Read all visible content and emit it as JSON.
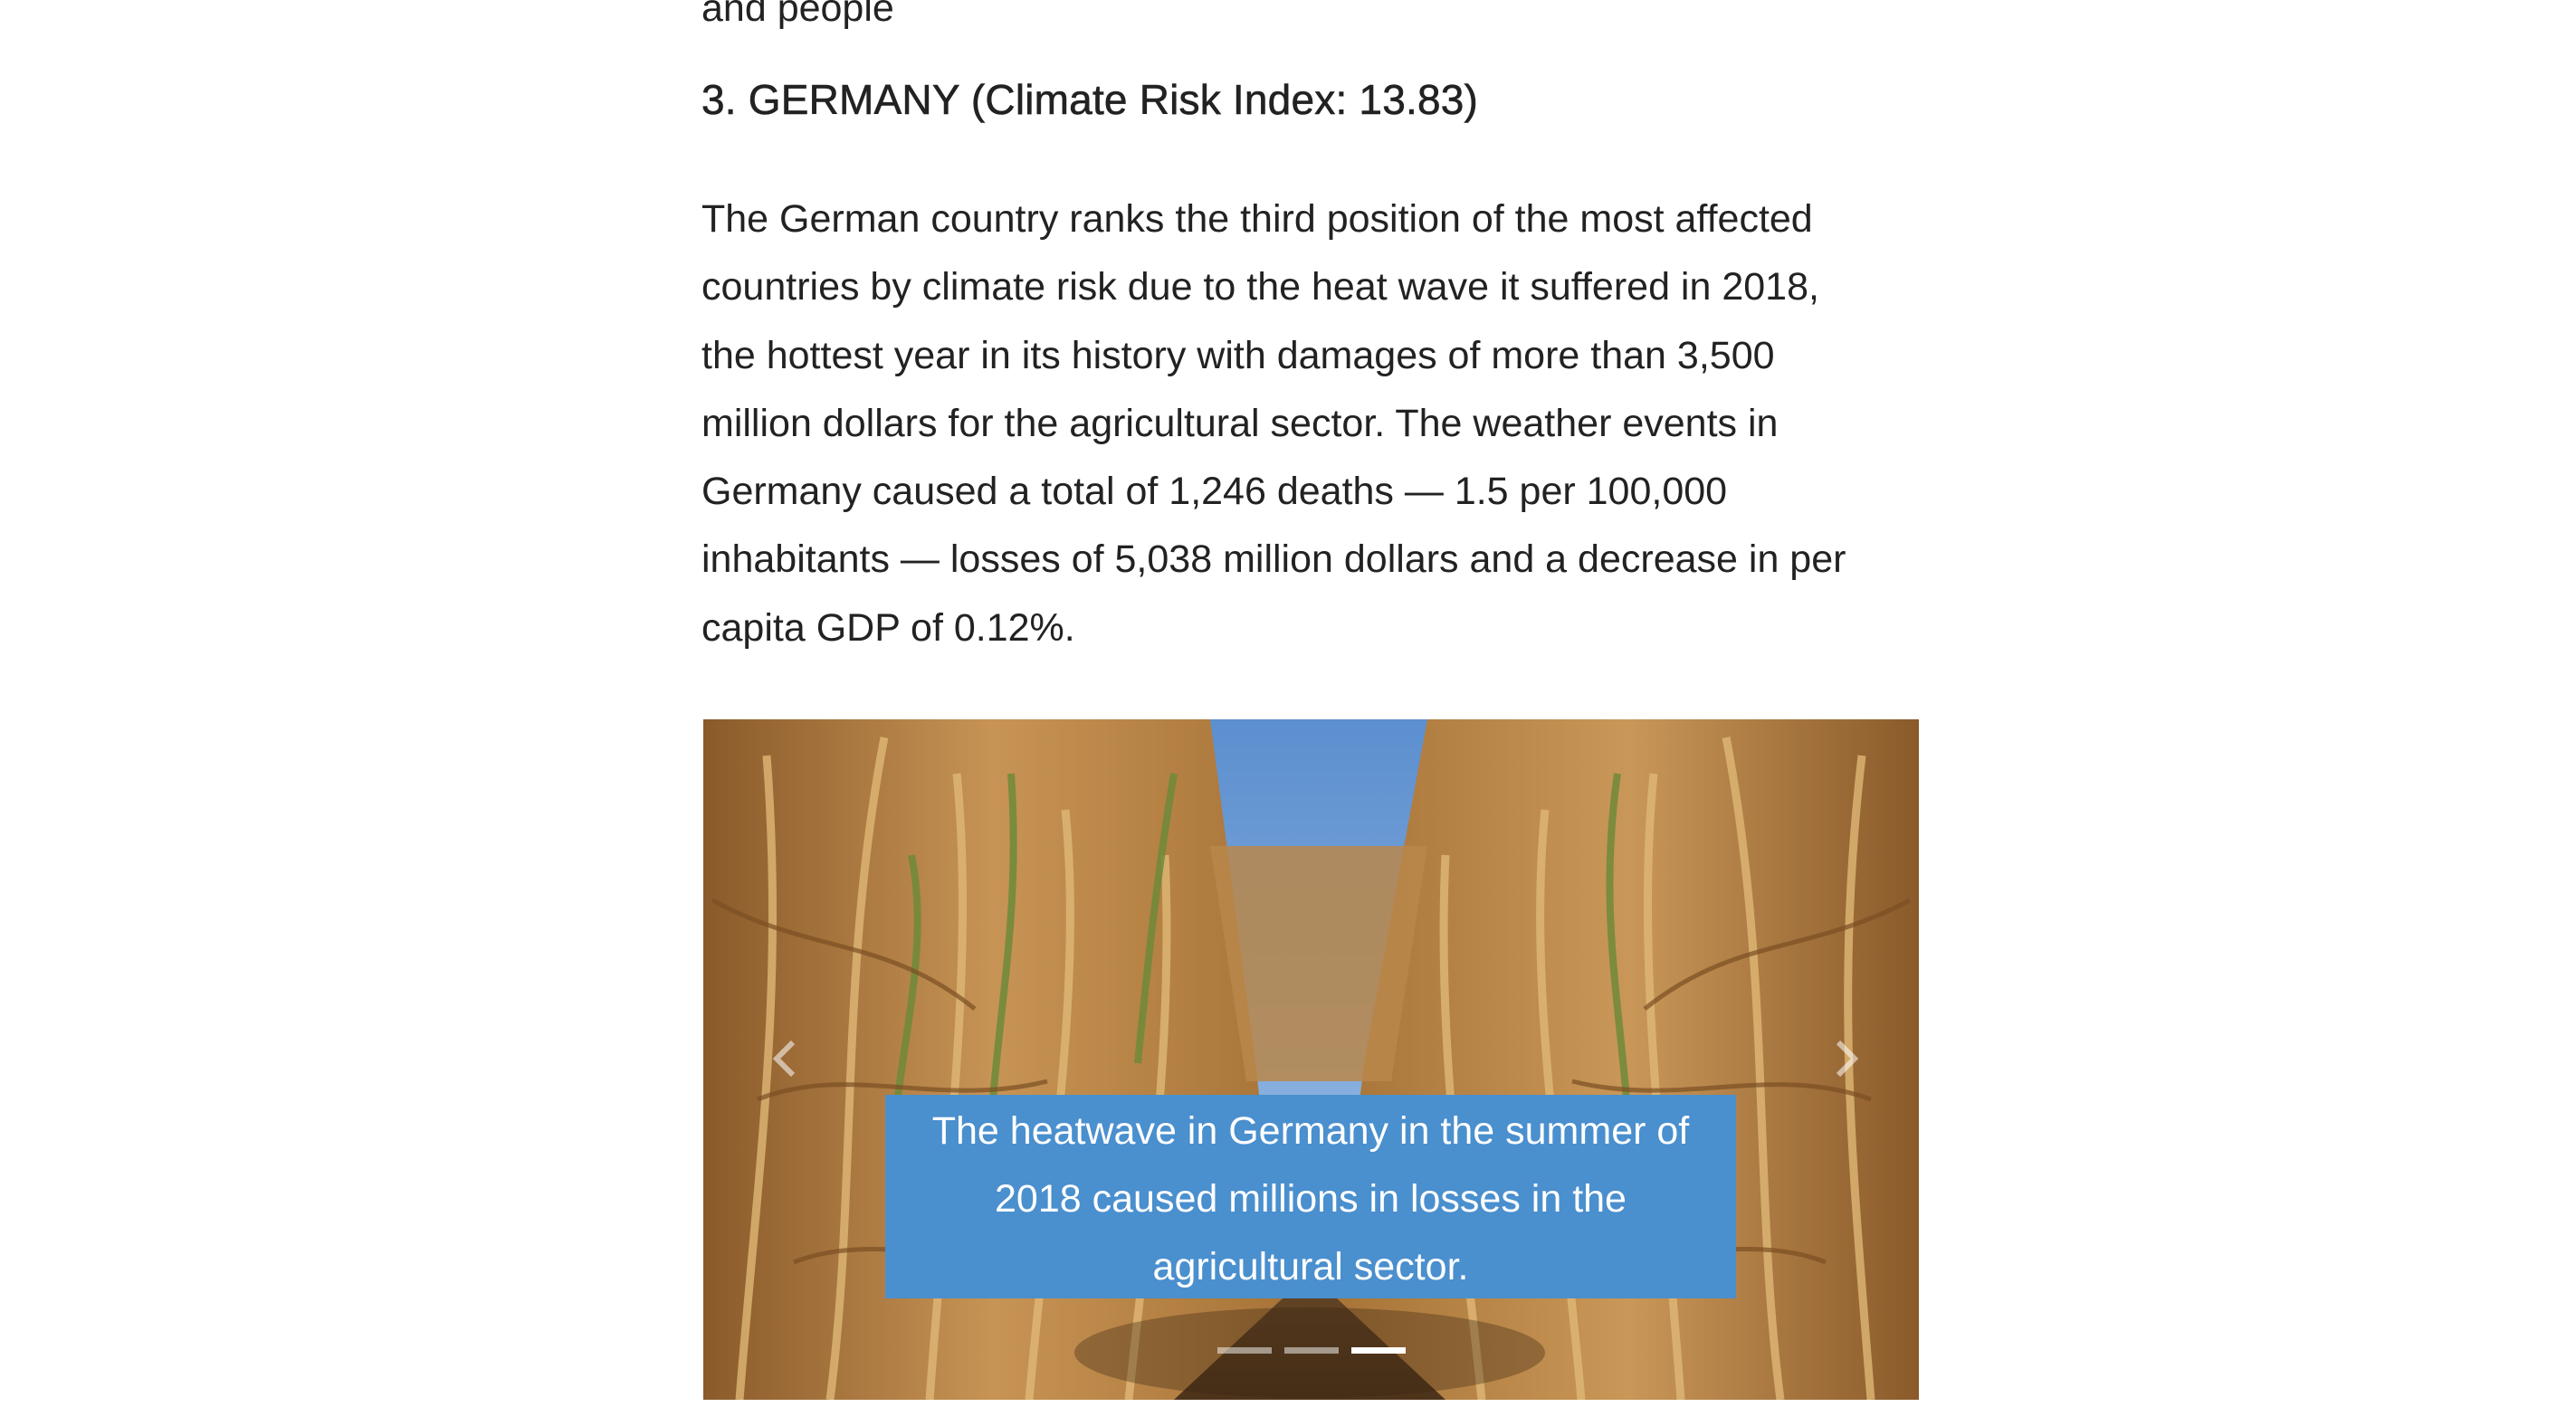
{
  "article": {
    "prev_fragment": "and people",
    "heading": "3. GERMANY (Climate Risk Index: 13.83)",
    "body_lines": [
      "The German country ranks the third position of the most affected",
      "countries by climate risk due to the heat wave it suffered in 2018,",
      "the hottest year in its history with damages of more than 3,500",
      "million dollars for the agricultural sector. The weather events in",
      "Germany caused a total of 1,246 deaths — 1.5 per 100,000",
      "inhabitants — losses of 5,038 million dollars and a decrease in per",
      "capita GDP of 0.12%."
    ]
  },
  "carousel": {
    "caption_lines": [
      "The heatwave in Germany in the summer of",
      "2018 caused millions in losses in the",
      "agricultural sector."
    ],
    "indicator_count": 3,
    "active_index": 2,
    "prev_icon": "chevron-left-icon",
    "next_icon": "chevron-right-icon",
    "caption_color": "#4a8fce"
  }
}
